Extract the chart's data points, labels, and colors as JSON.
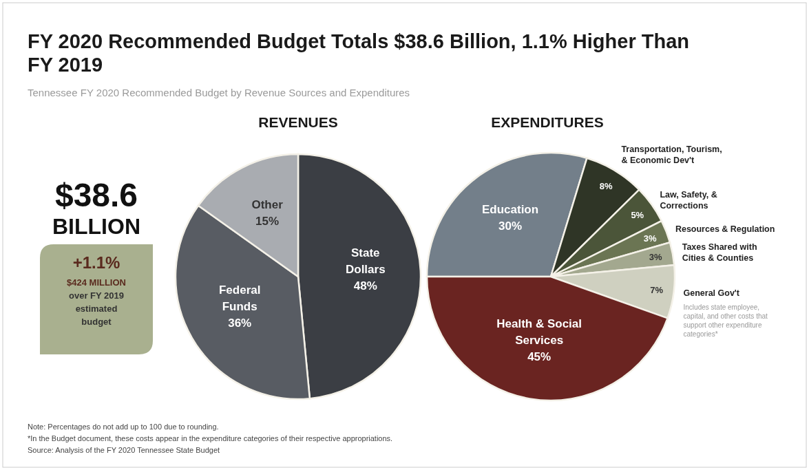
{
  "chart_data": [
    {
      "type": "other",
      "title": "FY 2020 Recommended Budget Totals $38.6 Billion, 1.1% Higher Than FY 2019",
      "subtitle": "Tennessee FY 2020 Recommended Budget by Revenue Sources and Expenditures",
      "annotations": [
        "$38.6",
        "BILLION",
        "+1.1%",
        "$424 MILLION",
        "over FY 2019 estimated budget",
        "Note: Percentages do not add up to 100 due to rounding.",
        "*In the Budget document, these costs appear in the expenditure categories of their respective appropriations.",
        "Source: Analysis of the FY 2020 Tennessee State Budget"
      ]
    },
    {
      "type": "pie",
      "title": "REVENUES",
      "categories": [
        "State Dollars",
        "Federal Funds",
        "Other"
      ],
      "values": [
        48,
        36,
        15
      ],
      "colors": [
        "#3b3e44",
        "#585c63",
        "#a9acb1"
      ],
      "value_labels": [
        "48%",
        "36%",
        "15%"
      ]
    },
    {
      "type": "pie",
      "title": "EXPENDITURES",
      "categories": [
        "Education",
        "Transportation, Tourism, & Economic Dev't",
        "Law, Safety, & Corrections",
        "Resources & Regulation",
        "Taxes Shared with Cities & Counties",
        "General Gov't",
        "Health & Social Services"
      ],
      "values": [
        30,
        8,
        5,
        3,
        3,
        7,
        45
      ],
      "colors": [
        "#737f8a",
        "#2f3526",
        "#4b5539",
        "#6b7553",
        "#a3a88f",
        "#cfd0c0",
        "#6a2421"
      ],
      "value_labels": [
        "30%",
        "8%",
        "5%",
        "3%",
        "3%",
        "7%",
        "45%"
      ],
      "annotations": [
        "Includes state employee, capital, and other costs that support other expenditure categories*"
      ]
    }
  ]
}
